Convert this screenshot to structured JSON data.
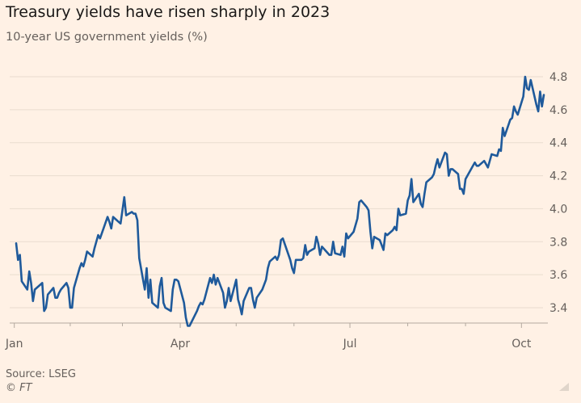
{
  "title": "Treasury yields have risen sharply in 2023",
  "subtitle": "10-year US government yields (%)",
  "source": "Source: LSEG",
  "credit": "© FT",
  "colors": {
    "background": "#fff1e5",
    "line": "#1f5a9b",
    "grid": "#e9dccf",
    "axis": "#b3a99f",
    "text": "#66605c"
  },
  "chart_data": {
    "type": "line",
    "title": "Treasury yields have risen sharply in 2023",
    "subtitle": "10-year US government yields (%)",
    "xlabel": "",
    "ylabel": "",
    "ylim": [
      3.3,
      4.9
    ],
    "y_ticks": [
      3.4,
      3.6,
      3.8,
      4.0,
      4.2,
      4.4,
      4.6,
      4.8
    ],
    "y_tick_labels": [
      "3.4",
      "3.6",
      "3.8",
      "4.0",
      "4.2",
      "4.4",
      "4.6",
      "4.8"
    ],
    "y_axis_position": "right",
    "x_ticks": [
      {
        "label": "Jan",
        "date": "2023-01-02"
      },
      {
        "label": "Apr",
        "date": "2023-04-01"
      },
      {
        "label": "Jul",
        "date": "2023-07-01"
      },
      {
        "label": "Oct",
        "date": "2023-10-01"
      }
    ],
    "grid": "horizontal",
    "series": [
      {
        "points": [
          [
            "2023-01-03",
            3.79
          ],
          [
            "2023-01-04",
            3.69
          ],
          [
            "2023-01-05",
            3.72
          ],
          [
            "2023-01-06",
            3.56
          ],
          [
            "2023-01-09",
            3.51
          ],
          [
            "2023-01-10",
            3.62
          ],
          [
            "2023-01-11",
            3.55
          ],
          [
            "2023-01-12",
            3.44
          ],
          [
            "2023-01-13",
            3.51
          ],
          [
            "2023-01-17",
            3.55
          ],
          [
            "2023-01-18",
            3.38
          ],
          [
            "2023-01-19",
            3.4
          ],
          [
            "2023-01-20",
            3.48
          ],
          [
            "2023-01-23",
            3.52
          ],
          [
            "2023-01-24",
            3.46
          ],
          [
            "2023-01-25",
            3.46
          ],
          [
            "2023-01-26",
            3.49
          ],
          [
            "2023-01-27",
            3.51
          ],
          [
            "2023-01-30",
            3.55
          ],
          [
            "2023-01-31",
            3.52
          ],
          [
            "2023-02-01",
            3.4
          ],
          [
            "2023-02-02",
            3.4
          ],
          [
            "2023-02-03",
            3.52
          ],
          [
            "2023-02-06",
            3.64
          ],
          [
            "2023-02-07",
            3.67
          ],
          [
            "2023-02-08",
            3.65
          ],
          [
            "2023-02-09",
            3.69
          ],
          [
            "2023-02-10",
            3.74
          ],
          [
            "2023-02-13",
            3.71
          ],
          [
            "2023-02-14",
            3.76
          ],
          [
            "2023-02-15",
            3.8
          ],
          [
            "2023-02-16",
            3.84
          ],
          [
            "2023-02-17",
            3.82
          ],
          [
            "2023-02-21",
            3.95
          ],
          [
            "2023-02-22",
            3.92
          ],
          [
            "2023-02-23",
            3.88
          ],
          [
            "2023-02-24",
            3.95
          ],
          [
            "2023-02-27",
            3.92
          ],
          [
            "2023-02-28",
            3.91
          ],
          [
            "2023-03-01",
            3.99
          ],
          [
            "2023-03-02",
            4.07
          ],
          [
            "2023-03-03",
            3.96
          ],
          [
            "2023-03-06",
            3.98
          ],
          [
            "2023-03-07",
            3.97
          ],
          [
            "2023-03-08",
            3.97
          ],
          [
            "2023-03-09",
            3.93
          ],
          [
            "2023-03-10",
            3.7
          ],
          [
            "2023-03-13",
            3.51
          ],
          [
            "2023-03-14",
            3.64
          ],
          [
            "2023-03-15",
            3.46
          ],
          [
            "2023-03-16",
            3.57
          ],
          [
            "2023-03-17",
            3.43
          ],
          [
            "2023-03-20",
            3.4
          ],
          [
            "2023-03-21",
            3.53
          ],
          [
            "2023-03-22",
            3.58
          ],
          [
            "2023-03-23",
            3.43
          ],
          [
            "2023-03-24",
            3.4
          ],
          [
            "2023-03-27",
            3.38
          ],
          [
            "2023-03-28",
            3.51
          ],
          [
            "2023-03-29",
            3.57
          ],
          [
            "2023-03-30",
            3.57
          ],
          [
            "2023-03-31",
            3.56
          ],
          [
            "2023-04-03",
            3.43
          ],
          [
            "2023-04-04",
            3.34
          ],
          [
            "2023-04-05",
            3.29
          ],
          [
            "2023-04-06",
            3.29
          ],
          [
            "2023-04-10",
            3.38
          ],
          [
            "2023-04-11",
            3.41
          ],
          [
            "2023-04-12",
            3.43
          ],
          [
            "2023-04-13",
            3.42
          ],
          [
            "2023-04-14",
            3.45
          ],
          [
            "2023-04-17",
            3.58
          ],
          [
            "2023-04-18",
            3.55
          ],
          [
            "2023-04-19",
            3.6
          ],
          [
            "2023-04-20",
            3.54
          ],
          [
            "2023-04-21",
            3.58
          ],
          [
            "2023-04-24",
            3.49
          ],
          [
            "2023-04-25",
            3.4
          ],
          [
            "2023-04-26",
            3.44
          ],
          [
            "2023-04-27",
            3.52
          ],
          [
            "2023-04-28",
            3.44
          ],
          [
            "2023-05-01",
            3.57
          ],
          [
            "2023-05-02",
            3.45
          ],
          [
            "2023-05-03",
            3.41
          ],
          [
            "2023-05-04",
            3.36
          ],
          [
            "2023-05-05",
            3.44
          ],
          [
            "2023-05-08",
            3.52
          ],
          [
            "2023-05-09",
            3.52
          ],
          [
            "2023-05-10",
            3.45
          ],
          [
            "2023-05-11",
            3.4
          ],
          [
            "2023-05-12",
            3.46
          ],
          [
            "2023-05-15",
            3.51
          ],
          [
            "2023-05-16",
            3.54
          ],
          [
            "2023-05-17",
            3.57
          ],
          [
            "2023-05-18",
            3.64
          ],
          [
            "2023-05-19",
            3.68
          ],
          [
            "2023-05-22",
            3.71
          ],
          [
            "2023-05-23",
            3.69
          ],
          [
            "2023-05-24",
            3.72
          ],
          [
            "2023-05-25",
            3.81
          ],
          [
            "2023-05-26",
            3.82
          ],
          [
            "2023-05-30",
            3.69
          ],
          [
            "2023-05-31",
            3.64
          ],
          [
            "2023-06-01",
            3.61
          ],
          [
            "2023-06-02",
            3.69
          ],
          [
            "2023-06-05",
            3.69
          ],
          [
            "2023-06-06",
            3.7
          ],
          [
            "2023-06-07",
            3.78
          ],
          [
            "2023-06-08",
            3.72
          ],
          [
            "2023-06-09",
            3.74
          ],
          [
            "2023-06-12",
            3.76
          ],
          [
            "2023-06-13",
            3.83
          ],
          [
            "2023-06-14",
            3.79
          ],
          [
            "2023-06-15",
            3.72
          ],
          [
            "2023-06-16",
            3.77
          ],
          [
            "2023-06-20",
            3.72
          ],
          [
            "2023-06-21",
            3.72
          ],
          [
            "2023-06-22",
            3.8
          ],
          [
            "2023-06-23",
            3.73
          ],
          [
            "2023-06-26",
            3.72
          ],
          [
            "2023-06-27",
            3.77
          ],
          [
            "2023-06-28",
            3.71
          ],
          [
            "2023-06-29",
            3.85
          ],
          [
            "2023-06-30",
            3.82
          ],
          [
            "2023-07-03",
            3.86
          ],
          [
            "2023-07-05",
            3.94
          ],
          [
            "2023-07-06",
            4.04
          ],
          [
            "2023-07-07",
            4.05
          ],
          [
            "2023-07-10",
            4.01
          ],
          [
            "2023-07-11",
            3.99
          ],
          [
            "2023-07-12",
            3.86
          ],
          [
            "2023-07-13",
            3.76
          ],
          [
            "2023-07-14",
            3.83
          ],
          [
            "2023-07-17",
            3.81
          ],
          [
            "2023-07-18",
            3.78
          ],
          [
            "2023-07-19",
            3.75
          ],
          [
            "2023-07-20",
            3.85
          ],
          [
            "2023-07-21",
            3.84
          ],
          [
            "2023-07-24",
            3.87
          ],
          [
            "2023-07-25",
            3.89
          ],
          [
            "2023-07-26",
            3.87
          ],
          [
            "2023-07-27",
            4.0
          ],
          [
            "2023-07-28",
            3.96
          ],
          [
            "2023-07-31",
            3.97
          ],
          [
            "2023-08-01",
            4.05
          ],
          [
            "2023-08-02",
            4.08
          ],
          [
            "2023-08-03",
            4.18
          ],
          [
            "2023-08-04",
            4.04
          ],
          [
            "2023-08-07",
            4.09
          ],
          [
            "2023-08-08",
            4.03
          ],
          [
            "2023-08-09",
            4.01
          ],
          [
            "2023-08-10",
            4.09
          ],
          [
            "2023-08-11",
            4.16
          ],
          [
            "2023-08-14",
            4.19
          ],
          [
            "2023-08-15",
            4.21
          ],
          [
            "2023-08-16",
            4.26
          ],
          [
            "2023-08-17",
            4.3
          ],
          [
            "2023-08-18",
            4.25
          ],
          [
            "2023-08-21",
            4.34
          ],
          [
            "2023-08-22",
            4.33
          ],
          [
            "2023-08-23",
            4.2
          ],
          [
            "2023-08-24",
            4.24
          ],
          [
            "2023-08-25",
            4.24
          ],
          [
            "2023-08-28",
            4.21
          ],
          [
            "2023-08-29",
            4.12
          ],
          [
            "2023-08-30",
            4.12
          ],
          [
            "2023-08-31",
            4.09
          ],
          [
            "2023-09-01",
            4.18
          ],
          [
            "2023-09-05",
            4.26
          ],
          [
            "2023-09-06",
            4.28
          ],
          [
            "2023-09-07",
            4.26
          ],
          [
            "2023-09-08",
            4.26
          ],
          [
            "2023-09-11",
            4.29
          ],
          [
            "2023-09-12",
            4.27
          ],
          [
            "2023-09-13",
            4.25
          ],
          [
            "2023-09-14",
            4.29
          ],
          [
            "2023-09-15",
            4.33
          ],
          [
            "2023-09-18",
            4.32
          ],
          [
            "2023-09-19",
            4.36
          ],
          [
            "2023-09-20",
            4.35
          ],
          [
            "2023-09-21",
            4.49
          ],
          [
            "2023-09-22",
            4.44
          ],
          [
            "2023-09-25",
            4.54
          ],
          [
            "2023-09-26",
            4.55
          ],
          [
            "2023-09-27",
            4.62
          ],
          [
            "2023-09-28",
            4.59
          ],
          [
            "2023-09-29",
            4.57
          ],
          [
            "2023-10-02",
            4.68
          ],
          [
            "2023-10-03",
            4.8
          ],
          [
            "2023-10-04",
            4.73
          ],
          [
            "2023-10-05",
            4.72
          ],
          [
            "2023-10-06",
            4.78
          ],
          [
            "2023-10-09",
            4.63
          ],
          [
            "2023-10-10",
            4.59
          ],
          [
            "2023-10-11",
            4.71
          ],
          [
            "2023-10-12",
            4.62
          ],
          [
            "2023-10-13",
            4.69
          ]
        ]
      }
    ]
  }
}
